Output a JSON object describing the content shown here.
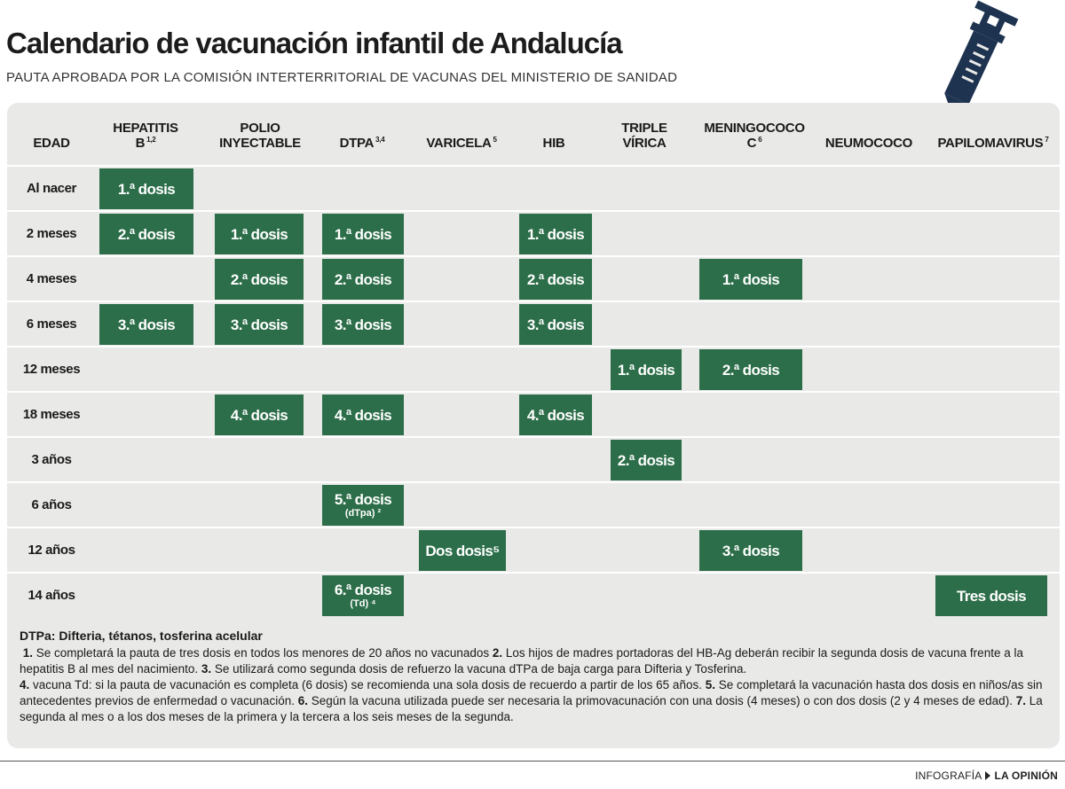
{
  "title": "Calendario de vacunación infantil de Andalucía",
  "subtitle": "PAUTA APROBADA POR LA COMISIÓN INTERTERRITORIAL DE VACUNAS DEL MINISTERIO DE SANIDAD",
  "colors": {
    "dose": "#2c6e49",
    "panel": "#e9e9e7"
  },
  "icon": "syringe-icon",
  "headers": {
    "edad": "EDAD",
    "hepatitis": "HEPATITIS",
    "hepatitis_b": "B",
    "hepatitis_sup": "1,2",
    "polio_1": "POLIO",
    "polio_2": "INYECTABLE",
    "dtpa": "DTPA",
    "dtpa_sup": "3,4",
    "varicela": "VARICELA",
    "varicela_sup": "5",
    "hib": "HIB",
    "triple_1": "TRIPLE",
    "triple_2": "VÍRICA",
    "mening_1": "MENINGOCOCO",
    "mening_2": "C",
    "mening_sup": "6",
    "neumococo": "NEUMOCOCO",
    "papiloma": "PAPILOMAVIRUS",
    "papiloma_sup": "7"
  },
  "rows": [
    {
      "label": "Al nacer",
      "doses": [
        {
          "col": "hepatitis",
          "text": "1.ª dosis"
        }
      ]
    },
    {
      "label": "2 meses",
      "doses": [
        {
          "col": "hepatitis",
          "text": "2.ª dosis"
        },
        {
          "col": "polio",
          "text": "1.ª dosis"
        },
        {
          "col": "dtpa",
          "text": "1.ª dosis"
        },
        {
          "col": "hib",
          "text": "1.ª dosis"
        }
      ]
    },
    {
      "label": "4 meses",
      "doses": [
        {
          "col": "polio",
          "text": "2.ª dosis"
        },
        {
          "col": "dtpa",
          "text": "2.ª dosis"
        },
        {
          "col": "hib",
          "text": "2.ª dosis"
        },
        {
          "col": "mening",
          "text": "1.ª dosis"
        }
      ]
    },
    {
      "label": "6 meses",
      "doses": [
        {
          "col": "hepatitis",
          "text": "3.ª dosis"
        },
        {
          "col": "polio",
          "text": "3.ª dosis"
        },
        {
          "col": "dtpa",
          "text": "3.ª dosis"
        },
        {
          "col": "hib",
          "text": "3.ª dosis"
        }
      ]
    },
    {
      "label": "12 meses",
      "doses": [
        {
          "col": "triple",
          "text": "1.ª dosis"
        },
        {
          "col": "mening",
          "text": "2.ª dosis"
        }
      ]
    },
    {
      "label": "18 meses",
      "doses": [
        {
          "col": "polio",
          "text": "4.ª dosis"
        },
        {
          "col": "dtpa",
          "text": "4.ª dosis"
        },
        {
          "col": "hib",
          "text": "4.ª dosis"
        }
      ]
    },
    {
      "label": "3 años",
      "doses": [
        {
          "col": "triple",
          "text": "2.ª dosis"
        }
      ]
    },
    {
      "label": "6 años",
      "doses": [
        {
          "col": "dtpa",
          "text": "5.ª dosis",
          "sub": "(dTpa) ²"
        }
      ]
    },
    {
      "label": "12 años",
      "doses": [
        {
          "col": "varicela",
          "text": "Dos dosis⁵"
        },
        {
          "col": "mening",
          "text": "3.ª dosis"
        }
      ]
    },
    {
      "label": "14 años",
      "doses": [
        {
          "col": "dtpa",
          "text": "6.ª dosis",
          "sub": "(Td) ⁴"
        },
        {
          "col": "papiloma",
          "text": "Tres dosis"
        }
      ]
    }
  ],
  "notes": {
    "title": "DTPa: Difteria, tétanos, tosferina acelular",
    "n1": "1.",
    "t1": " Se completará la pauta de tres dosis en todos los menores de 20 años no vacunados ",
    "n2": "2.",
    "t2": " Los hijos de madres portadoras del HB-Ag deberán recibir la segunda dosis de vacuna frente a la hepatitis B al mes del nacimiento. ",
    "n3": "3.",
    "t3": " Se utilizará como segunda dosis de refuerzo la vacuna dTPa de baja carga para Difteria y Tosferina.",
    "n4": "4.",
    "t4": " vacuna Td: si la pauta de vacunación es completa (6 dosis) se recomienda una sola dosis de recuerdo a partir de los 65 años. ",
    "n5": "5.",
    "t5": " Se completará la vacunación hasta dos dosis en niños/as sin antecedentes previos de enfermedad o vacunación. ",
    "n6": "6.",
    "t6": " Según la vacuna utilizada puede ser necesaria la primovacunación con una dosis (4 meses) o con dos dosis (2 y 4 meses de edad). ",
    "n7": "7.",
    "t7": " La segunda al mes o a los dos meses de la primera y la tercera a los seis meses de la segunda."
  },
  "footer": {
    "label": "INFOGRAFÍA",
    "brand": "LA OPINIÓN"
  }
}
